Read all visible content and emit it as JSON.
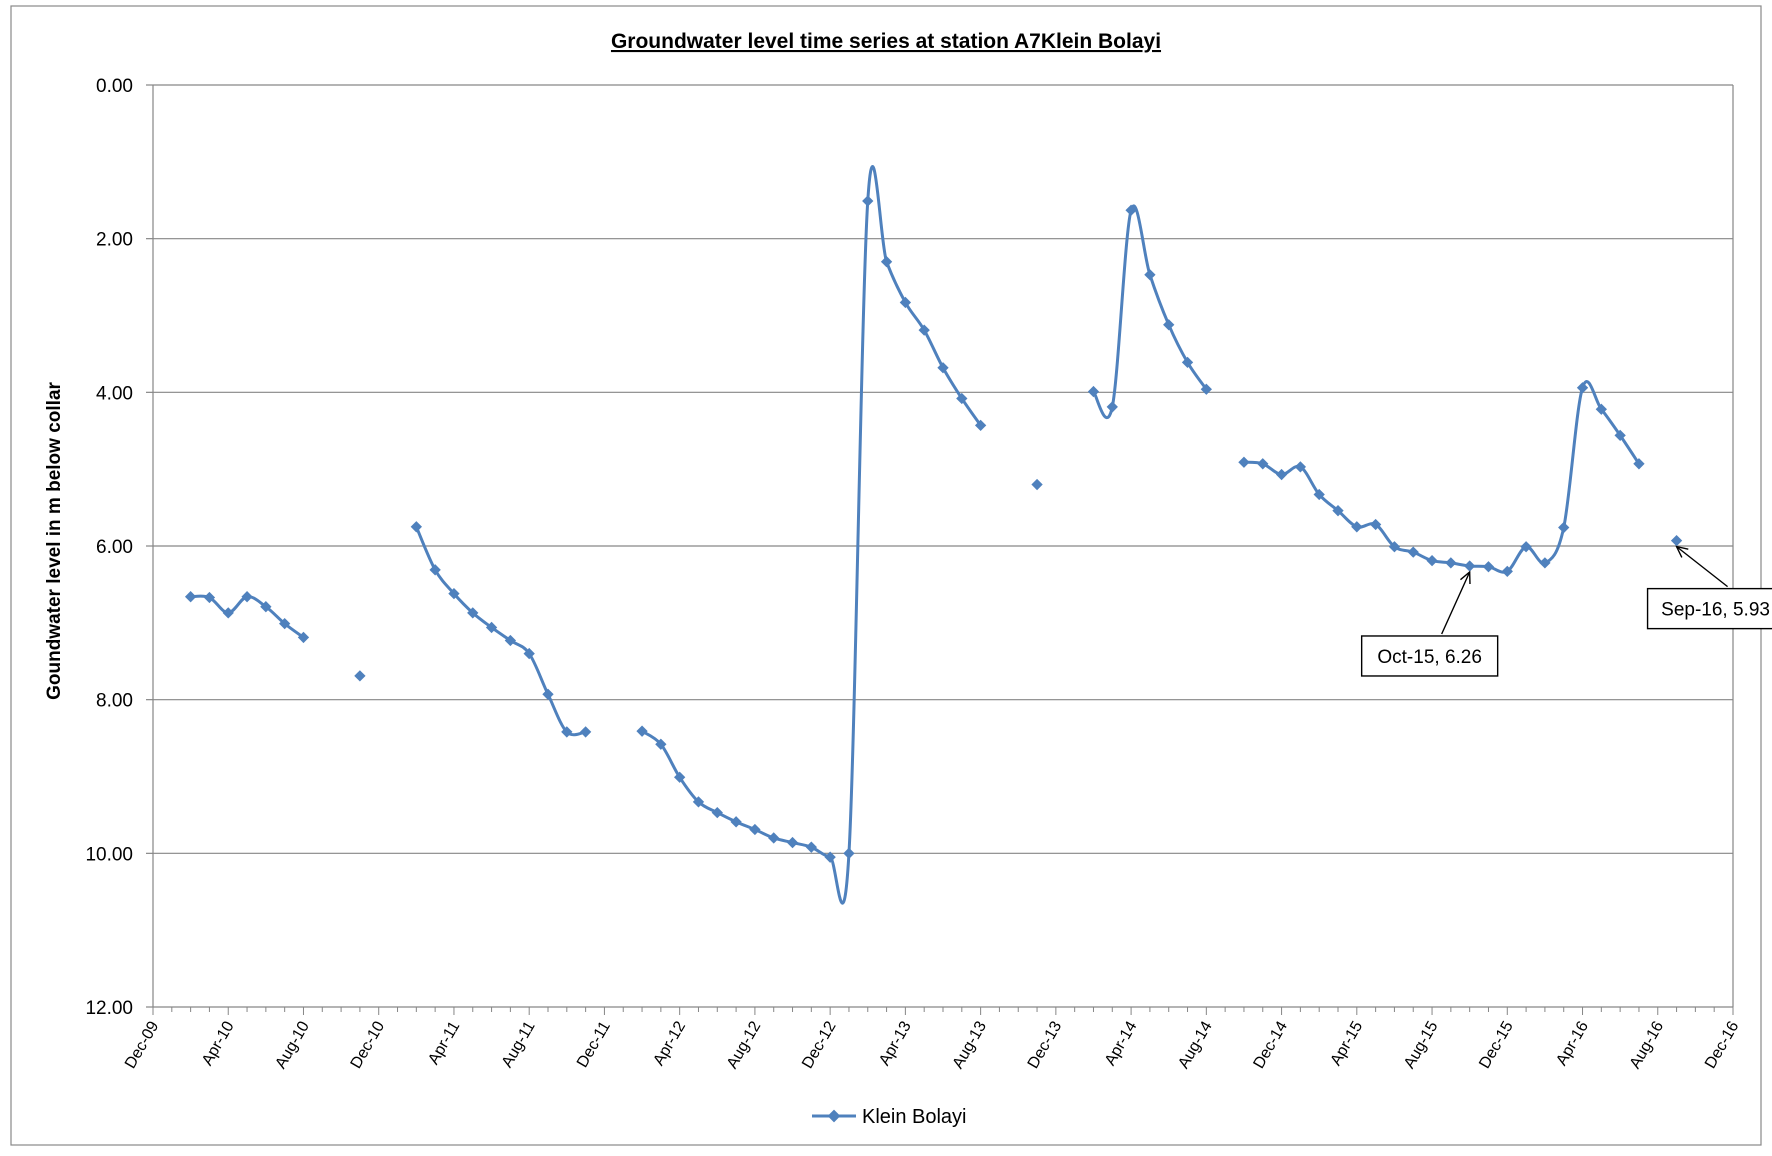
{
  "chart_data": {
    "type": "line",
    "title": "Groundwater level time series at station A7Klein Bolayi",
    "ylabel": "Goundwater level in m below collar",
    "xlabel": "",
    "y_axis": {
      "reversed": true,
      "ylim": [
        0,
        12
      ],
      "tick_labels": [
        "0.00",
        "2.00",
        "4.00",
        "6.00",
        "8.00",
        "10.00",
        "12.00"
      ]
    },
    "x_axis": {
      "tick_labels": [
        "Dec-09",
        "Apr-10",
        "Aug-10",
        "Dec-10",
        "Apr-11",
        "Aug-11",
        "Dec-11",
        "Apr-12",
        "Aug-12",
        "Dec-12",
        "Apr-13",
        "Aug-13",
        "Dec-13",
        "Apr-14",
        "Aug-14",
        "Dec-14",
        "Apr-15",
        "Aug-15",
        "Dec-15",
        "Apr-16",
        "Aug-16",
        "Dec-16"
      ]
    },
    "grid": "horizontal",
    "legend_position": "bottom",
    "colors": {
      "series": "#4f81bd"
    },
    "series": [
      {
        "name": "Klein Bolayi",
        "segments": [
          [
            {
              "x": "Feb-10",
              "y": 6.66
            },
            {
              "x": "Mar-10",
              "y": 6.67
            },
            {
              "x": "Apr-10",
              "y": 6.87
            },
            {
              "x": "May-10",
              "y": 6.66
            },
            {
              "x": "Jun-10",
              "y": 6.79
            },
            {
              "x": "Jul-10",
              "y": 7.01
            },
            {
              "x": "Aug-10",
              "y": 7.19
            }
          ],
          [
            {
              "x": "Nov-10",
              "y": 7.69
            }
          ],
          [
            {
              "x": "Feb-11",
              "y": 5.75
            },
            {
              "x": "Mar-11",
              "y": 6.31
            },
            {
              "x": "Apr-11",
              "y": 6.62
            },
            {
              "x": "May-11",
              "y": 6.87
            },
            {
              "x": "Jun-11",
              "y": 7.06
            },
            {
              "x": "Jul-11",
              "y": 7.23
            },
            {
              "x": "Aug-11",
              "y": 7.4
            },
            {
              "x": "Sep-11",
              "y": 7.93
            },
            {
              "x": "Oct-11",
              "y": 8.42
            },
            {
              "x": "Nov-11",
              "y": 8.42
            }
          ],
          [
            {
              "x": "Feb-12",
              "y": 8.41
            },
            {
              "x": "Mar-12",
              "y": 8.58
            },
            {
              "x": "Apr-12",
              "y": 9.01
            },
            {
              "x": "May-12",
              "y": 9.33
            },
            {
              "x": "Jun-12",
              "y": 9.47
            },
            {
              "x": "Jul-12",
              "y": 9.59
            },
            {
              "x": "Aug-12",
              "y": 9.69
            },
            {
              "x": "Sep-12",
              "y": 9.8
            },
            {
              "x": "Oct-12",
              "y": 9.86
            },
            {
              "x": "Nov-12",
              "y": 9.92
            },
            {
              "x": "Dec-12",
              "y": 10.05
            },
            {
              "x": "Jan-13",
              "y": 10.0
            },
            {
              "x": "Feb-13",
              "y": 1.51
            },
            {
              "x": "Mar-13",
              "y": 2.3
            },
            {
              "x": "Apr-13",
              "y": 2.83
            },
            {
              "x": "May-13",
              "y": 3.19
            },
            {
              "x": "Jun-13",
              "y": 3.68
            },
            {
              "x": "Jul-13",
              "y": 4.08
            },
            {
              "x": "Aug-13",
              "y": 4.43
            }
          ],
          [
            {
              "x": "Nov-13",
              "y": 5.2
            }
          ],
          [
            {
              "x": "Feb-14",
              "y": 3.99
            },
            {
              "x": "Mar-14",
              "y": 4.19
            },
            {
              "x": "Apr-14",
              "y": 1.63
            },
            {
              "x": "May-14",
              "y": 2.47
            },
            {
              "x": "Jun-14",
              "y": 3.12
            },
            {
              "x": "Jul-14",
              "y": 3.61
            },
            {
              "x": "Aug-14",
              "y": 3.96
            }
          ],
          [
            {
              "x": "Oct-14",
              "y": 4.91
            },
            {
              "x": "Nov-14",
              "y": 4.93
            },
            {
              "x": "Dec-14",
              "y": 5.07
            },
            {
              "x": "Jan-15",
              "y": 4.97
            },
            {
              "x": "Feb-15",
              "y": 5.33
            },
            {
              "x": "Mar-15",
              "y": 5.54
            },
            {
              "x": "Apr-15",
              "y": 5.75
            },
            {
              "x": "May-15",
              "y": 5.72
            },
            {
              "x": "Jun-15",
              "y": 6.01
            },
            {
              "x": "Jul-15",
              "y": 6.08
            },
            {
              "x": "Aug-15",
              "y": 6.19
            },
            {
              "x": "Sep-15",
              "y": 6.22
            },
            {
              "x": "Oct-15",
              "y": 6.26
            },
            {
              "x": "Nov-15",
              "y": 6.27
            },
            {
              "x": "Dec-15",
              "y": 6.33
            },
            {
              "x": "Jan-16",
              "y": 6.01
            },
            {
              "x": "Feb-16",
              "y": 6.22
            },
            {
              "x": "Mar-16",
              "y": 5.76
            },
            {
              "x": "Apr-16",
              "y": 3.94
            },
            {
              "x": "May-16",
              "y": 4.22
            },
            {
              "x": "Jun-16",
              "y": 4.56
            },
            {
              "x": "Jul-16",
              "y": 4.93
            }
          ],
          [
            {
              "x": "Sep-16",
              "y": 5.93
            }
          ]
        ]
      }
    ],
    "annotations": [
      {
        "text": "Oct-15, 6.26",
        "x": "Oct-15",
        "y": 6.26
      },
      {
        "text": "Sep-16, 5.93",
        "x": "Sep-16",
        "y": 5.93
      }
    ]
  }
}
